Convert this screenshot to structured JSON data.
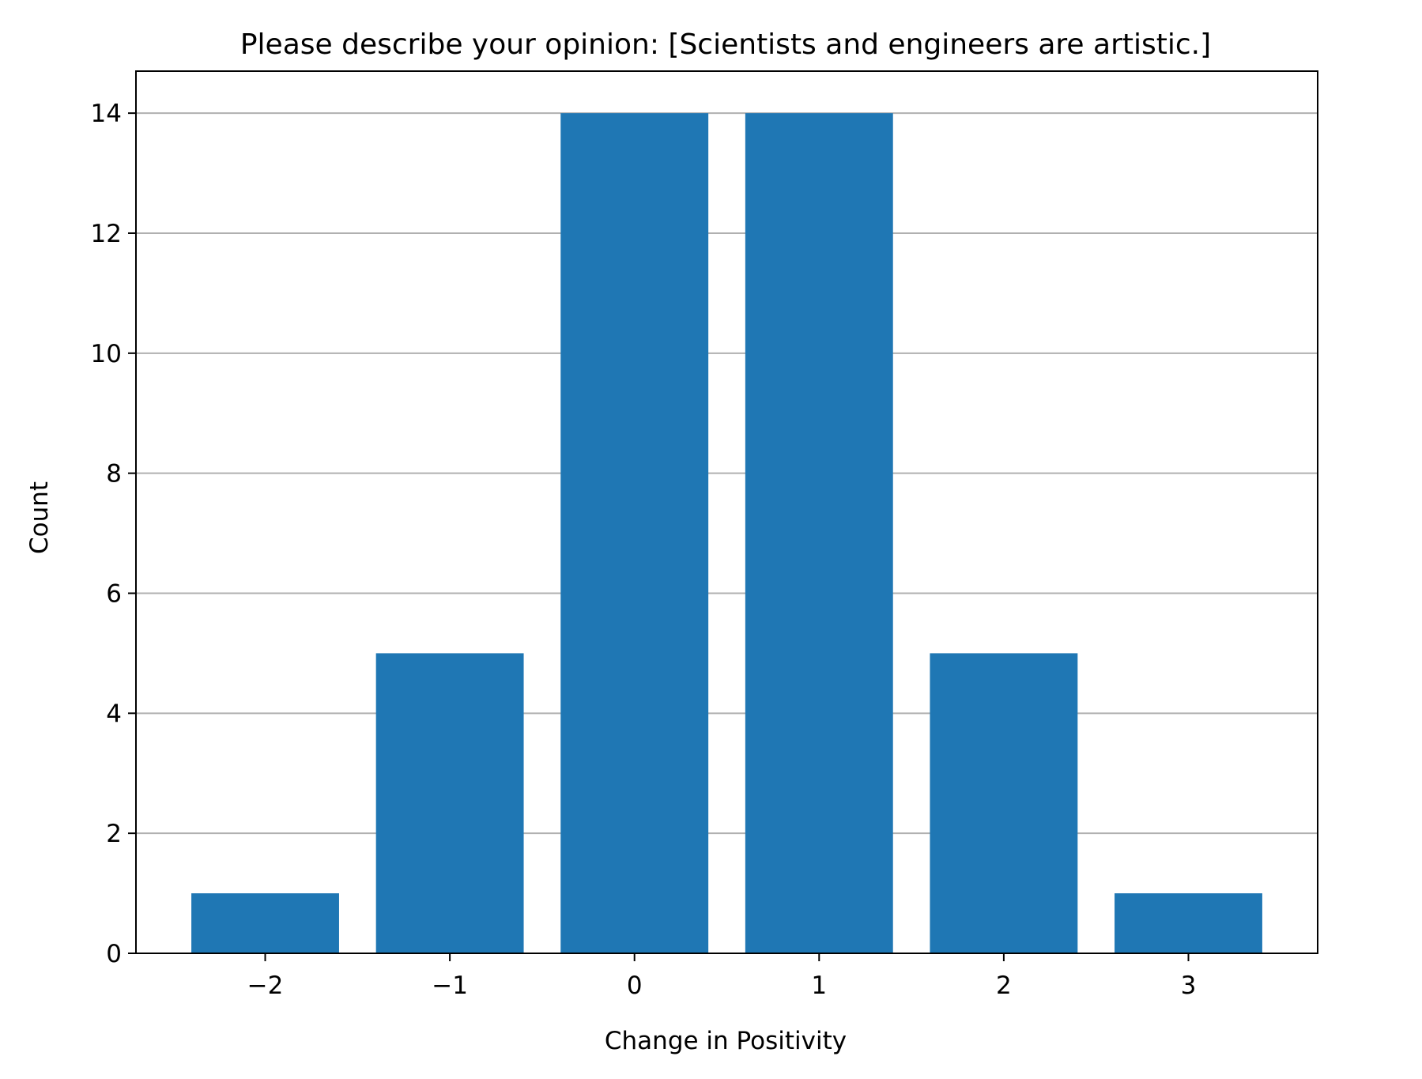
{
  "chart_data": {
    "type": "bar",
    "title": "Please describe your opinion: [Scientists and engineers are artistic.]",
    "xlabel": "Change in Positivity",
    "ylabel": "Count",
    "x": [
      -2,
      -1,
      0,
      1,
      2,
      3
    ],
    "x_tick_labels": [
      "−2",
      "−1",
      "0",
      "1",
      "2",
      "3"
    ],
    "values": [
      1,
      5,
      14,
      14,
      5,
      1
    ],
    "xlim": [
      -2.7,
      3.7
    ],
    "ylim": [
      0,
      14.7
    ],
    "y_ticks": [
      0,
      2,
      4,
      6,
      8,
      10,
      12,
      14
    ],
    "y_tick_labels": [
      "0",
      "2",
      "4",
      "6",
      "8",
      "10",
      "12",
      "14"
    ],
    "bar_width": 0.8,
    "grid": "horizontal",
    "legend": "none",
    "colors": {
      "bar": "#1f77b4",
      "grid": "#b0b0b0",
      "axes": "#000000"
    }
  }
}
